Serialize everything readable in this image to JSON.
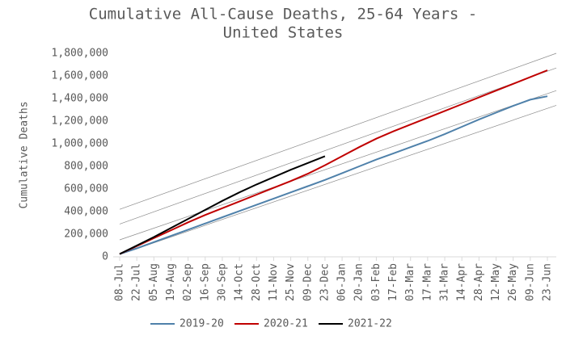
{
  "chart_data": {
    "type": "line",
    "title": "Cumulative All-Cause Deaths, 25-64 Years -",
    "subtitle": "United States",
    "y_label": "Cumulative Deaths",
    "categories": [
      "08-Jul",
      "22-Jul",
      "05-Aug",
      "19-Aug",
      "02-Sep",
      "16-Sep",
      "30-Sep",
      "14-Oct",
      "28-Oct",
      "11-Nov",
      "25-Nov",
      "09-Dec",
      "23-Dec",
      "06-Jan",
      "20-Jan",
      "03-Feb",
      "17-Feb",
      "03-Mar",
      "17-Mar",
      "31-Mar",
      "14-Apr",
      "28-Apr",
      "12-May",
      "26-May",
      "09-Jun",
      "23-Jun"
    ],
    "series": [
      {
        "name": "2019-20",
        "color": "#4f81aa",
        "values": [
          25000,
          75000,
          130000,
          185000,
          240000,
          295000,
          350000,
          405000,
          460000,
          515000,
          570000,
          625000,
          680000,
          740000,
          800000,
          860000,
          915000,
          970000,
          1025000,
          1085000,
          1150000,
          1215000,
          1275000,
          1335000,
          1390000,
          1420000
        ]
      },
      {
        "name": "2020-21",
        "color": "#c00000",
        "values": [
          25000,
          95000,
          165000,
          235000,
          305000,
          370000,
          430000,
          490000,
          550000,
          610000,
          670000,
          735000,
          810000,
          890000,
          970000,
          1045000,
          1110000,
          1170000,
          1230000,
          1290000,
          1350000,
          1410000,
          1470000,
          1530000,
          1590000,
          1650000
        ]
      },
      {
        "name": "2021-22",
        "color": "#000000",
        "values": [
          25000,
          100000,
          175000,
          255000,
          335000,
          415000,
          495000,
          570000,
          640000,
          705000,
          770000,
          830000,
          890000,
          null,
          null,
          null,
          null,
          null,
          null,
          null,
          null,
          null,
          null,
          null,
          null,
          null
        ]
      }
    ],
    "trend_lines": [
      {
        "color": "#8c8c8c",
        "values": [
          420000,
          1800000
        ]
      },
      {
        "color": "#8c8c8c",
        "values": [
          290000,
          1670000
        ]
      },
      {
        "color": "#8c8c8c",
        "values": [
          150000,
          1470000
        ]
      },
      {
        "color": "#8c8c8c",
        "values": [
          20000,
          1340000
        ]
      }
    ],
    "ylim": [
      0,
      1800000
    ],
    "yticks": [
      0,
      {
        "value": 200000,
        "label": "200,000"
      },
      {
        "value": 400000,
        "label": "400,000"
      },
      {
        "value": 600000,
        "label": "600,000"
      },
      {
        "value": 800000,
        "label": "800,000"
      },
      {
        "value": 1000000,
        "label": "1,000,000"
      },
      {
        "value": 1200000,
        "label": "1,200,000"
      },
      {
        "value": 1400000,
        "label": "1,400,000"
      },
      {
        "value": 1600000,
        "label": "1,600,000"
      },
      {
        "value": 1800000,
        "label": "1,800,000"
      }
    ],
    "grid": false,
    "legend": "bottom"
  }
}
